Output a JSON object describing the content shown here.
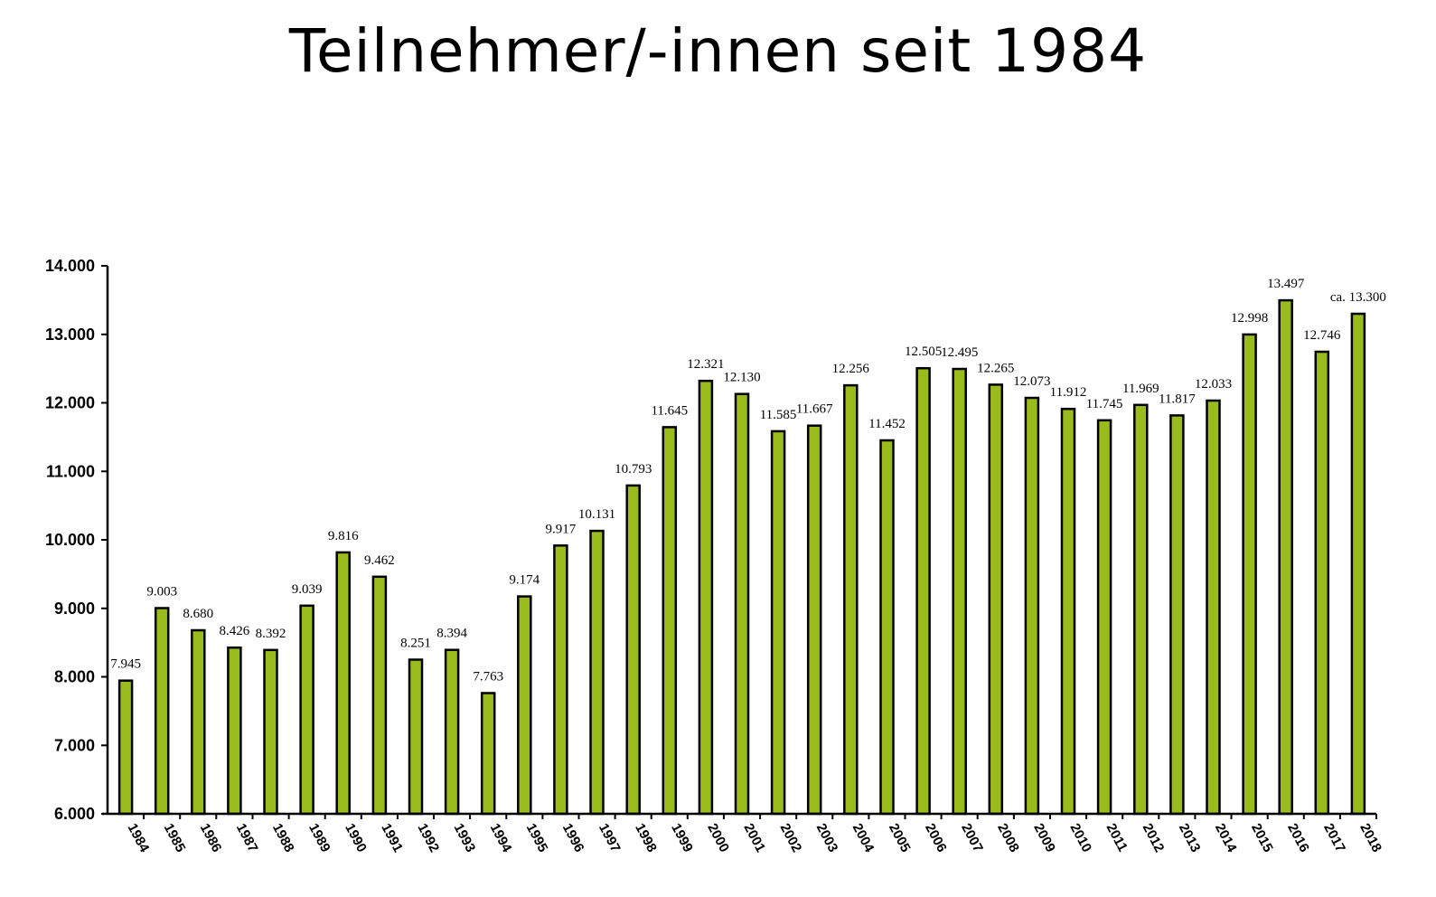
{
  "chart_data": {
    "type": "bar",
    "title": "Teilnehmer/-innen seit 1984",
    "xlabel": "",
    "ylabel": "",
    "ylim": [
      6000,
      14000
    ],
    "yticks": [
      {
        "value": 6000,
        "label": "6.000"
      },
      {
        "value": 7000,
        "label": "7.000"
      },
      {
        "value": 8000,
        "label": "8.000"
      },
      {
        "value": 9000,
        "label": "9.000"
      },
      {
        "value": 10000,
        "label": "10.000"
      },
      {
        "value": 11000,
        "label": "11.000"
      },
      {
        "value": 12000,
        "label": "12.000"
      },
      {
        "value": 13000,
        "label": "13.000"
      },
      {
        "value": 14000,
        "label": "14.000"
      }
    ],
    "categories": [
      "1984",
      "1985",
      "1986",
      "1987",
      "1988",
      "1989",
      "1990",
      "1991",
      "1992",
      "1993",
      "1994",
      "1995",
      "1996",
      "1997",
      "1998",
      "1999",
      "2000",
      "2001",
      "2002",
      "2003",
      "2004",
      "2005",
      "2006",
      "2007",
      "2008",
      "2009",
      "2010",
      "2011",
      "2012",
      "2013",
      "2014",
      "2015",
      "2016",
      "2017",
      "2018"
    ],
    "values": [
      7945,
      9003,
      8680,
      8426,
      8392,
      9039,
      9816,
      9462,
      8251,
      8394,
      7763,
      9174,
      9917,
      10131,
      10793,
      11645,
      12321,
      12130,
      11585,
      11667,
      12256,
      11452,
      12505,
      12495,
      12265,
      12073,
      11912,
      11745,
      11969,
      11817,
      12033,
      12998,
      13497,
      12746,
      13300
    ],
    "data_labels": [
      "7.945",
      "9.003",
      "8.680",
      "8.426",
      "8.392",
      "9.039",
      "9.816",
      "9.462",
      "8.251",
      "8.394",
      "7.763",
      "9.174",
      "9.917",
      "10.131",
      "10.793",
      "11.645",
      "12.321",
      "12.130",
      "11.585",
      "11.667",
      "12.256",
      "11.452",
      "12.505",
      "12.495",
      "12.265",
      "12.073",
      "11.912",
      "11.745",
      "11.969",
      "11.817",
      "12.033",
      "12.998",
      "13.497",
      "12.746",
      "ca. 13.300"
    ],
    "grid": false,
    "legend": "none",
    "colors": {
      "bar_fill": "#9abb1c",
      "bar_stroke": "#000000",
      "axis": "#000000"
    }
  }
}
